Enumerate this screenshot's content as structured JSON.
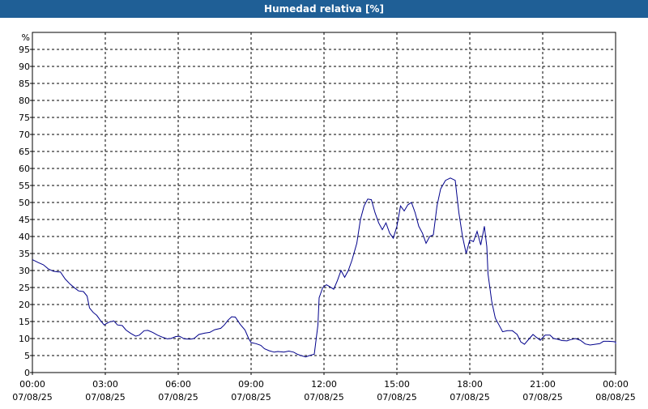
{
  "chart_data": {
    "type": "line",
    "title": "Humedad relativa [%]",
    "ylabel": "%",
    "ylim": [
      0,
      100
    ],
    "yticks": [
      0,
      5,
      10,
      15,
      20,
      25,
      30,
      35,
      40,
      45,
      50,
      55,
      60,
      65,
      70,
      75,
      80,
      85,
      90,
      95
    ],
    "xlim": [
      0,
      24
    ],
    "xticks": [
      {
        "x": 0,
        "time": "00:00",
        "date": "07/08/25"
      },
      {
        "x": 3,
        "time": "03:00",
        "date": "07/08/25"
      },
      {
        "x": 6,
        "time": "06:00",
        "date": "07/08/25"
      },
      {
        "x": 9,
        "time": "09:00",
        "date": "07/08/25"
      },
      {
        "x": 12,
        "time": "12:00",
        "date": "07/08/25"
      },
      {
        "x": 15,
        "time": "15:00",
        "date": "07/08/25"
      },
      {
        "x": 18,
        "time": "18:00",
        "date": "07/08/25"
      },
      {
        "x": 21,
        "time": "21:00",
        "date": "07/08/25"
      },
      {
        "x": 24,
        "time": "00:00",
        "date": "08/08/25"
      }
    ],
    "grid": true,
    "color": "#00008b",
    "series": [
      {
        "points": [
          [
            0.0,
            33.2
          ],
          [
            0.25,
            32.3
          ],
          [
            0.45,
            31.7
          ],
          [
            0.65,
            30.5
          ],
          [
            0.85,
            29.8
          ],
          [
            1.05,
            29.6
          ],
          [
            1.15,
            29.6
          ],
          [
            1.35,
            27.5
          ],
          [
            1.55,
            26.0
          ],
          [
            1.75,
            24.8
          ],
          [
            1.9,
            24.0
          ],
          [
            2.1,
            23.8
          ],
          [
            2.25,
            22.5
          ],
          [
            2.35,
            19.0
          ],
          [
            2.5,
            17.7
          ],
          [
            2.65,
            16.8
          ],
          [
            2.8,
            15.3
          ],
          [
            2.95,
            14.0
          ],
          [
            3.15,
            14.8
          ],
          [
            3.35,
            15.2
          ],
          [
            3.5,
            14.0
          ],
          [
            3.7,
            13.8
          ],
          [
            3.85,
            12.5
          ],
          [
            4.05,
            11.5
          ],
          [
            4.25,
            10.7
          ],
          [
            4.4,
            11.0
          ],
          [
            4.6,
            12.3
          ],
          [
            4.75,
            12.4
          ],
          [
            4.95,
            11.8
          ],
          [
            5.15,
            11.0
          ],
          [
            5.35,
            10.4
          ],
          [
            5.55,
            9.9
          ],
          [
            5.7,
            10.0
          ],
          [
            5.9,
            10.6
          ],
          [
            6.05,
            10.7
          ],
          [
            6.25,
            9.9
          ],
          [
            6.5,
            9.8
          ],
          [
            6.65,
            10.0
          ],
          [
            6.85,
            11.2
          ],
          [
            7.1,
            11.6
          ],
          [
            7.3,
            11.8
          ],
          [
            7.5,
            12.6
          ],
          [
            7.75,
            13.0
          ],
          [
            7.9,
            14.0
          ],
          [
            8.05,
            15.4
          ],
          [
            8.2,
            16.4
          ],
          [
            8.35,
            16.3
          ],
          [
            8.55,
            14.2
          ],
          [
            8.75,
            12.5
          ],
          [
            8.9,
            10.0
          ],
          [
            9.0,
            8.8
          ],
          [
            9.2,
            8.5
          ],
          [
            9.4,
            8.0
          ],
          [
            9.55,
            7.0
          ],
          [
            9.75,
            6.4
          ],
          [
            9.95,
            6.0
          ],
          [
            10.1,
            6.2
          ],
          [
            10.35,
            6.0
          ],
          [
            10.55,
            6.3
          ],
          [
            10.75,
            6.0
          ],
          [
            10.9,
            5.4
          ],
          [
            11.05,
            5.0
          ],
          [
            11.25,
            4.6
          ],
          [
            11.4,
            5.0
          ],
          [
            11.6,
            5.4
          ],
          [
            11.75,
            14.0
          ],
          [
            11.8,
            22.0
          ],
          [
            11.95,
            25.0
          ],
          [
            12.1,
            25.8
          ],
          [
            12.25,
            25.2
          ],
          [
            12.4,
            24.5
          ],
          [
            12.55,
            27.0
          ],
          [
            12.7,
            30.0
          ],
          [
            12.85,
            28.0
          ],
          [
            13.0,
            30.0
          ],
          [
            13.15,
            33.0
          ],
          [
            13.35,
            38.0
          ],
          [
            13.5,
            45.0
          ],
          [
            13.65,
            49.0
          ],
          [
            13.8,
            51.0
          ],
          [
            13.95,
            50.8
          ],
          [
            14.1,
            47.0
          ],
          [
            14.25,
            44.0
          ],
          [
            14.4,
            42.0
          ],
          [
            14.55,
            44.0
          ],
          [
            14.7,
            41.0
          ],
          [
            14.85,
            39.5
          ],
          [
            15.0,
            43.0
          ],
          [
            15.15,
            49.0
          ],
          [
            15.3,
            47.5
          ],
          [
            15.45,
            49.3
          ],
          [
            15.6,
            50.0
          ],
          [
            15.75,
            47.0
          ],
          [
            15.9,
            43.0
          ],
          [
            16.05,
            41.0
          ],
          [
            16.2,
            38.0
          ],
          [
            16.35,
            40.0
          ],
          [
            16.5,
            40.5
          ],
          [
            16.65,
            49.0
          ],
          [
            16.8,
            54.0
          ],
          [
            17.0,
            56.5
          ],
          [
            17.2,
            57.2
          ],
          [
            17.4,
            56.5
          ],
          [
            17.55,
            47.0
          ],
          [
            17.7,
            40.0
          ],
          [
            17.85,
            35.0
          ],
          [
            18.0,
            39.0
          ],
          [
            18.15,
            38.5
          ],
          [
            18.3,
            41.5
          ],
          [
            18.45,
            37.5
          ],
          [
            18.6,
            43.0
          ],
          [
            18.7,
            37.0
          ],
          [
            18.75,
            29.0
          ],
          [
            18.9,
            21.0
          ],
          [
            19.05,
            16.0
          ],
          [
            19.2,
            14.0
          ],
          [
            19.35,
            12.0
          ],
          [
            19.55,
            12.3
          ],
          [
            19.75,
            12.3
          ],
          [
            19.95,
            11.2
          ],
          [
            20.1,
            9.0
          ],
          [
            20.25,
            8.3
          ],
          [
            20.45,
            10.0
          ],
          [
            20.6,
            11.2
          ],
          [
            20.75,
            10.3
          ],
          [
            20.9,
            9.5
          ],
          [
            21.1,
            11.0
          ],
          [
            21.3,
            11.0
          ],
          [
            21.45,
            10.0
          ],
          [
            21.6,
            9.8
          ],
          [
            21.8,
            9.4
          ],
          [
            22.0,
            9.3
          ],
          [
            22.15,
            9.7
          ],
          [
            22.35,
            10.0
          ],
          [
            22.55,
            9.5
          ],
          [
            22.75,
            8.4
          ],
          [
            22.95,
            8.1
          ],
          [
            23.15,
            8.3
          ],
          [
            23.35,
            8.5
          ],
          [
            23.5,
            9.2
          ],
          [
            23.7,
            9.2
          ],
          [
            23.9,
            9.1
          ],
          [
            24.1,
            9.0
          ],
          [
            24.3,
            8.6
          ],
          [
            24.5,
            8.4
          ],
          [
            24.7,
            8.8
          ]
        ]
      }
    ]
  }
}
